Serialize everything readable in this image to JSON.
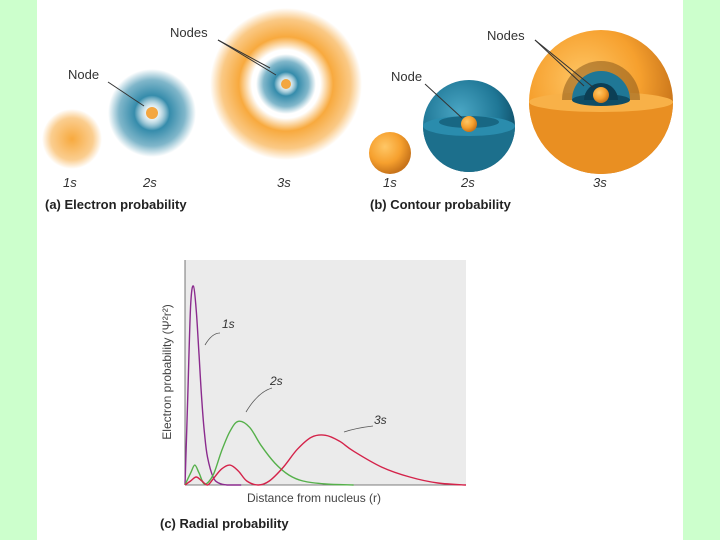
{
  "panel_a": {
    "node_label": "Node",
    "nodes_label": "Nodes",
    "orbitals": [
      "1s",
      "2s",
      "3s"
    ],
    "caption": "(a) Electron probability"
  },
  "panel_b": {
    "node_label": "Node",
    "nodes_label": "Nodes",
    "orbitals": [
      "1s",
      "2s",
      "3s"
    ],
    "caption": "(b) Contour probability"
  },
  "panel_c": {
    "caption": "(c) Radial probability",
    "chart_data": {
      "type": "line",
      "title": "(c) Radial probability",
      "xlabel": "Distance from nucleus (r)",
      "ylabel": "Electron probability (Ψ²r²)",
      "xlim": [
        0,
        10
      ],
      "ylim": [
        0,
        1
      ],
      "grid": false,
      "series": [
        {
          "name": "1s",
          "color": "#8b2b8e",
          "x": [
            0,
            0.1,
            0.2,
            0.3,
            0.4,
            0.5,
            0.6,
            0.7,
            0.8,
            1.0,
            1.2,
            1.5,
            2.0
          ],
          "values": [
            0,
            0.45,
            0.9,
            1.0,
            0.88,
            0.65,
            0.42,
            0.25,
            0.14,
            0.04,
            0.01,
            0,
            0
          ]
        },
        {
          "name": "2s",
          "color": "#55b04a",
          "x": [
            0,
            0.2,
            0.35,
            0.5,
            0.7,
            1.0,
            1.3,
            1.6,
            1.9,
            2.3,
            2.7,
            3.2,
            3.7,
            4.2,
            5.0,
            6.0
          ],
          "values": [
            0,
            0.06,
            0.1,
            0.06,
            0.005,
            0.05,
            0.17,
            0.27,
            0.32,
            0.29,
            0.2,
            0.11,
            0.05,
            0.02,
            0.005,
            0
          ]
        },
        {
          "name": "3s",
          "color": "#d4234a",
          "x": [
            0,
            0.2,
            0.4,
            0.6,
            0.8,
            1.0,
            1.3,
            1.6,
            1.9,
            2.2,
            2.6,
            3.0,
            3.5,
            4.0,
            4.5,
            5.0,
            5.5,
            6.0,
            7.0,
            8.0,
            9.0,
            10.0
          ],
          "values": [
            0,
            0.02,
            0.04,
            0.02,
            0,
            0.03,
            0.08,
            0.1,
            0.07,
            0.02,
            0,
            0.02,
            0.09,
            0.18,
            0.24,
            0.25,
            0.22,
            0.17,
            0.09,
            0.04,
            0.01,
            0
          ]
        }
      ]
    }
  }
}
